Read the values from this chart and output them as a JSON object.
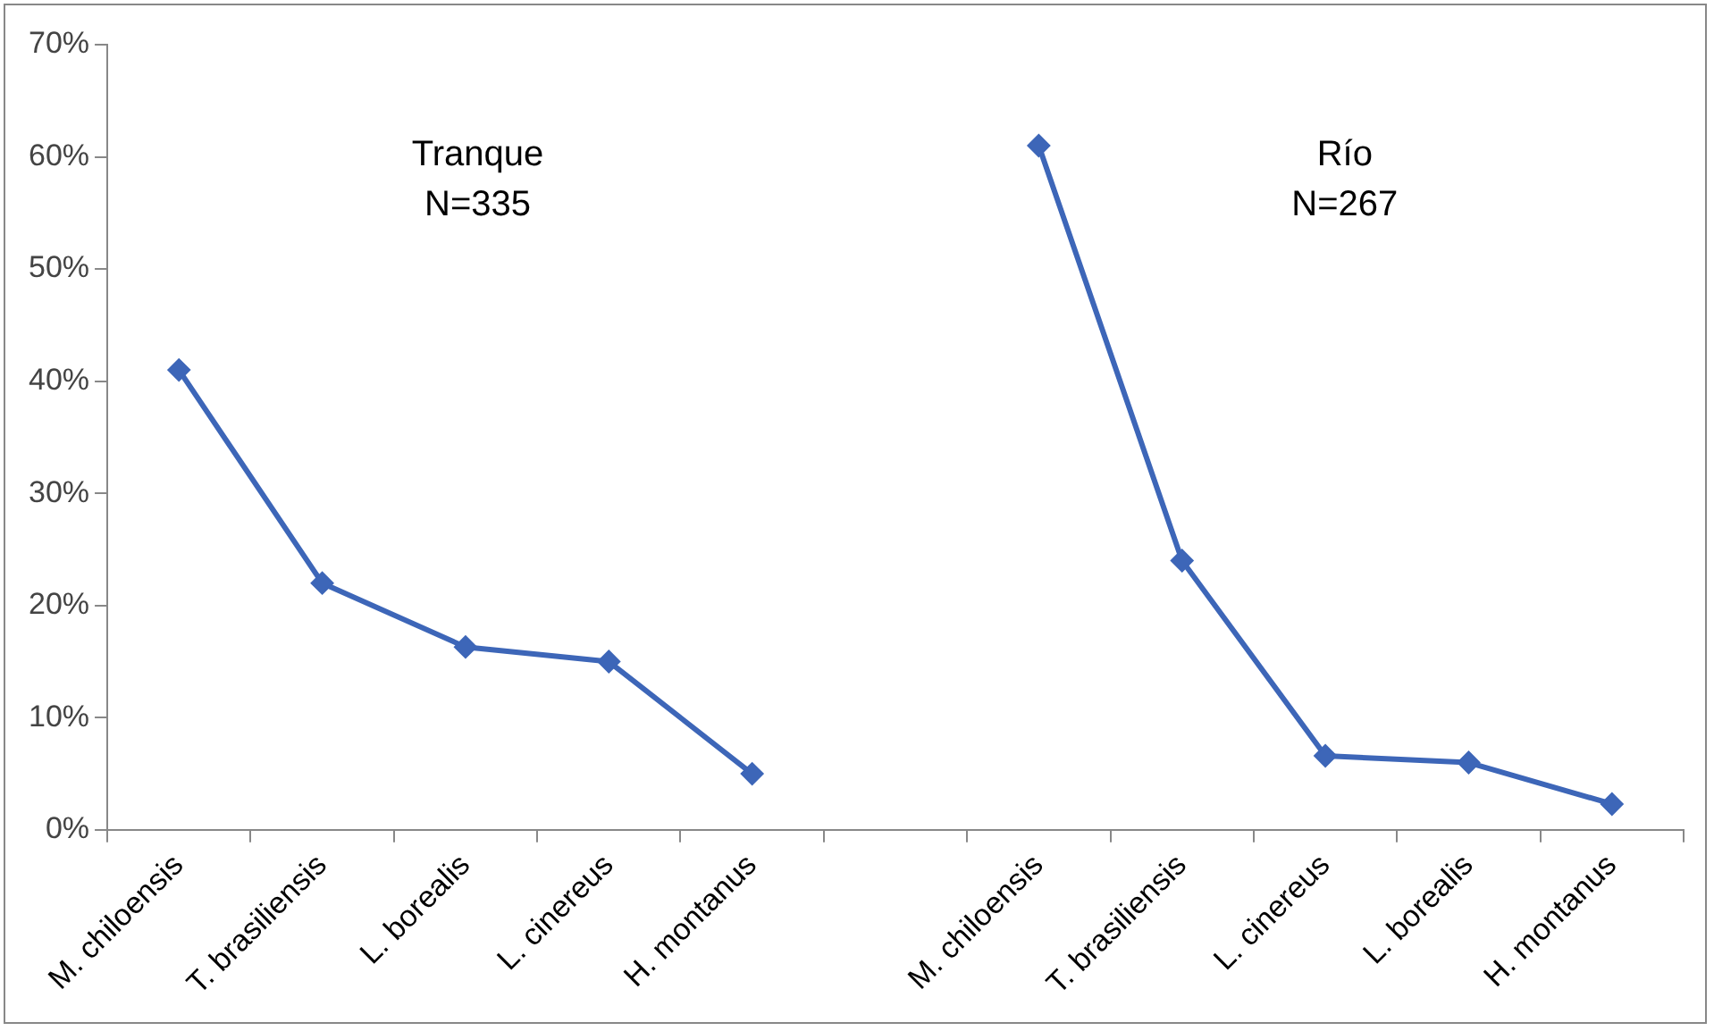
{
  "chart_data": {
    "type": "line",
    "categories": [
      "M. chiloensis",
      "T. brasiliensis",
      "L. borealis",
      "L. cinereus",
      "H. montanus",
      null,
      "M. chiloensis",
      "T. brasiliensis",
      "L. cinereus",
      "L. borealis",
      "H. montanus"
    ],
    "series": [
      {
        "color": "#3d66b8",
        "values": [
          41,
          22,
          16.3,
          15,
          5,
          null,
          null,
          null,
          null,
          null,
          null
        ]
      },
      {
        "color": "#3d66b8",
        "values": [
          null,
          null,
          null,
          null,
          null,
          null,
          61,
          24,
          6.6,
          6,
          2.3
        ]
      }
    ],
    "ylim": [
      0,
      70
    ],
    "yticks": [
      {
        "value": 0,
        "label": "0%"
      },
      {
        "value": 10,
        "label": "10%"
      },
      {
        "value": 20,
        "label": "20%"
      },
      {
        "value": 30,
        "label": "30%"
      },
      {
        "value": 40,
        "label": "40%"
      },
      {
        "value": 50,
        "label": "50%"
      },
      {
        "value": 60,
        "label": "60%"
      },
      {
        "value": 70,
        "label": "70%"
      }
    ],
    "annotations": [
      "Tranque\nN=335",
      "Río\nN=267"
    ],
    "marker": "diamond",
    "line_style": "solid",
    "grid": false,
    "legend": false
  }
}
